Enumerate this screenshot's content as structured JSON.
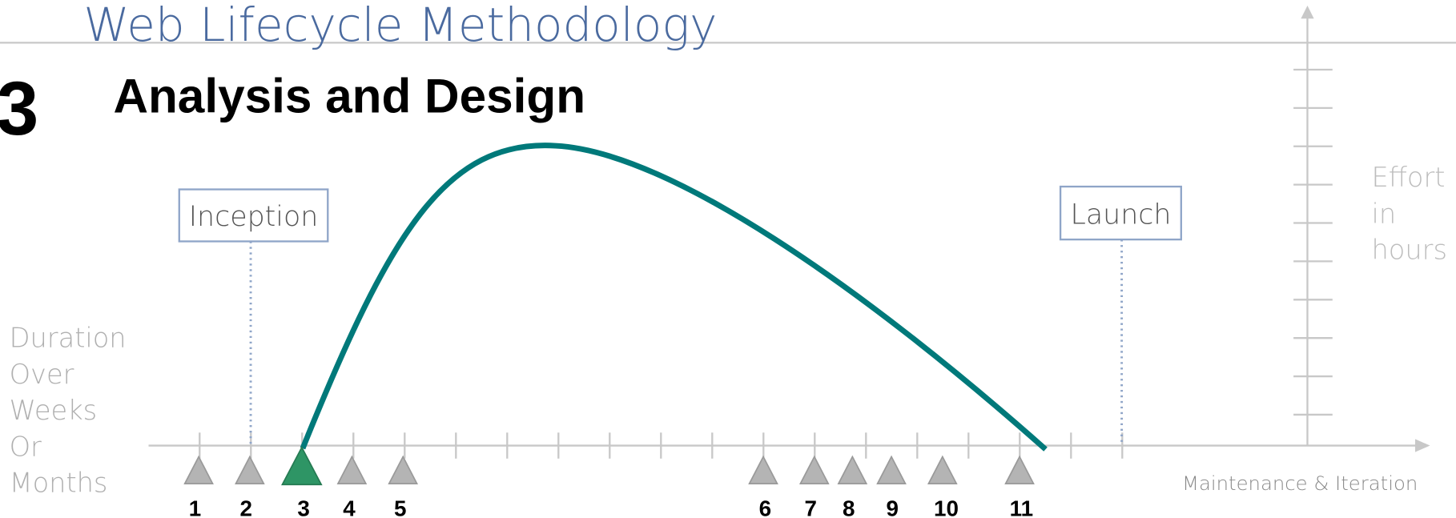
{
  "header": {
    "title": "Web Lifecycle Methodology",
    "step_number": "3",
    "step_title": "Analysis and Design"
  },
  "phases": [
    {
      "label": "Inception"
    },
    {
      "label": "Launch"
    }
  ],
  "y_axis_label": [
    "Effort",
    "in",
    "hours"
  ],
  "x_axis_label": [
    "Duration",
    "Over",
    "Weeks",
    "Or",
    "Months"
  ],
  "x_axis_note": "Maintenance & Iteration",
  "milestones": [
    "1",
    "2",
    "3",
    "4",
    "5",
    "6",
    "7",
    "8",
    "9",
    "10",
    "11"
  ]
}
